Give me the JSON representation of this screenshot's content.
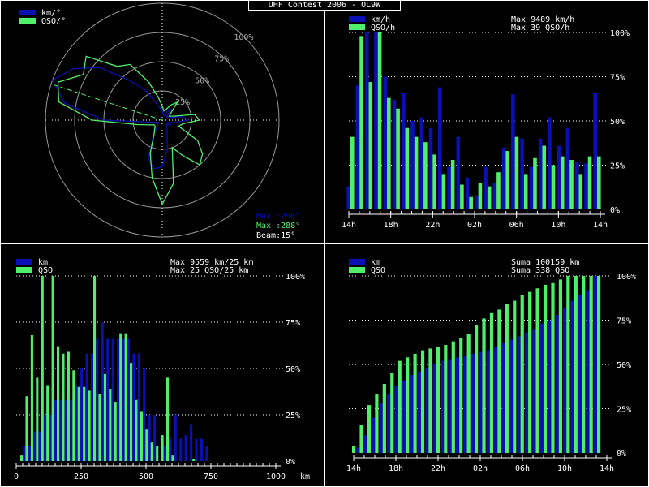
{
  "title": "UHF Contest 2006 - OL9W",
  "colors": {
    "blue": "#0a10b4",
    "green": "#4ef06a",
    "grid": "#ffffff",
    "ring": "#9a9a9a",
    "text": "#ffffff"
  },
  "chart_data": [
    {
      "id": "polar",
      "type": "polar",
      "legend": [
        "km/°",
        "QSO/°"
      ],
      "ring_labels": [
        "25%",
        "50%",
        "75%",
        "100%"
      ],
      "info": {
        "max_blue": "Max :290°",
        "max_green": "Max :288°",
        "beam": "Beam:15°"
      },
      "angles_deg": [
        0,
        10,
        20,
        30,
        40,
        50,
        60,
        70,
        80,
        90,
        100,
        110,
        120,
        130,
        140,
        150,
        160,
        170,
        180,
        190,
        200,
        210,
        220,
        230,
        240,
        250,
        260,
        270,
        280,
        290,
        300,
        310,
        320,
        330,
        340,
        350
      ],
      "series": [
        {
          "name": "km/°",
          "color": "blue",
          "values": [
            0.08,
            0.05,
            0.04,
            0.08,
            0.12,
            0.05,
            0.06,
            0.06,
            0.18,
            0.22,
            0.12,
            0.06,
            0.08,
            0.05,
            0.06,
            0.08,
            0.12,
            0.25,
            0.4,
            0.42,
            0.35,
            0.15,
            0.06,
            0.05,
            0.06,
            0.05,
            0.1,
            0.5,
            0.85,
            1.0,
            0.88,
            0.7,
            0.45,
            0.3,
            0.16,
            0.1
          ]
        },
        {
          "name": "QSO/°",
          "color": "green",
          "values": [
            0.12,
            0.08,
            0.1,
            0.15,
            0.2,
            0.1,
            0.07,
            0.1,
            0.28,
            0.32,
            0.18,
            0.15,
            0.35,
            0.45,
            0.5,
            0.35,
            0.25,
            0.55,
            0.72,
            0.5,
            0.3,
            0.14,
            0.1,
            0.08,
            0.08,
            0.12,
            0.22,
            0.6,
            0.9,
            0.95,
            0.78,
            0.85,
            0.6,
            0.55,
            0.35,
            0.2
          ]
        }
      ]
    },
    {
      "id": "hourly",
      "type": "bar",
      "legend": [
        "km/h",
        "QSO/h"
      ],
      "info": [
        "Max  9489 km/h",
        "Max   39 QSO/h"
      ],
      "x_ticks": [
        "14h",
        "18h",
        "22h",
        "02h",
        "06h",
        "10h",
        "14h"
      ],
      "y_ticks": [
        "0%",
        "25%",
        "50%",
        "75%",
        "100%"
      ],
      "ylim": [
        0,
        100
      ],
      "series": [
        {
          "name": "km/h",
          "color": "blue",
          "values": [
            13,
            70,
            100,
            100,
            75,
            62,
            66,
            50,
            52,
            46,
            69,
            24,
            41,
            18,
            8,
            24,
            15,
            35,
            65,
            40,
            24,
            40,
            52,
            36,
            46,
            27,
            26,
            66
          ]
        },
        {
          "name": "QSO/h",
          "color": "green",
          "values": [
            41,
            98,
            72,
            100,
            63,
            57,
            46,
            41,
            38,
            31,
            20,
            28,
            14,
            7,
            15,
            13,
            21,
            33,
            41,
            20,
            29,
            36,
            25,
            30,
            28,
            20,
            30,
            30
          ]
        }
      ]
    },
    {
      "id": "distance",
      "type": "bar",
      "legend": [
        "km",
        "QSO"
      ],
      "info": [
        "Max  9559 km/25 km",
        "Max   25 QSO/25 km"
      ],
      "x_ticks": [
        "0",
        "250",
        "500",
        "750",
        "1000"
      ],
      "x_unit": "km",
      "xlim": [
        0,
        1000
      ],
      "y_ticks": [
        "0%",
        "25%",
        "50%",
        "75%",
        "100%"
      ],
      "ylim": [
        0,
        100
      ],
      "bin_km": 25,
      "series": [
        {
          "name": "km",
          "color": "blue",
          "values": [
            0,
            8,
            8,
            16,
            16,
            25,
            25,
            33,
            33,
            33,
            33,
            41,
            50,
            58,
            58,
            66,
            75,
            66,
            66,
            66,
            66,
            66,
            58,
            58,
            50,
            25,
            25,
            0,
            8,
            12,
            25,
            12,
            14,
            20,
            12,
            12,
            8,
            0,
            0,
            0,
            0,
            0,
            0,
            0,
            0,
            0,
            0,
            0,
            0,
            0
          ]
        },
        {
          "name": "QSO",
          "color": "green",
          "values": [
            3,
            35,
            68,
            45,
            100,
            41,
            100,
            62,
            58,
            59,
            49,
            40,
            40,
            38,
            100,
            36,
            47,
            39,
            32,
            69,
            69,
            53,
            33,
            27,
            17,
            10,
            8,
            14,
            45,
            3,
            0,
            0,
            0,
            1,
            0,
            0,
            0,
            0,
            0,
            0,
            0,
            0,
            0,
            0,
            0,
            0,
            0,
            0,
            0,
            0
          ]
        }
      ]
    },
    {
      "id": "cumulative",
      "type": "bar",
      "legend": [
        "km",
        "QSO"
      ],
      "info": [
        "Suma 100159 km",
        "Suma   338 QSO"
      ],
      "x_ticks": [
        "14h",
        "18h",
        "22h",
        "02h",
        "06h",
        "10h",
        "14h"
      ],
      "y_ticks": [
        "0%",
        "25%",
        "50%",
        "75%",
        "100%"
      ],
      "ylim": [
        0,
        100
      ],
      "series": [
        {
          "name": "km",
          "color": "blue",
          "values": [
            0,
            3,
            10,
            20,
            28,
            33,
            38,
            41,
            44,
            46,
            48,
            50,
            52,
            53,
            54,
            55,
            56,
            57,
            58,
            60,
            62,
            64,
            66,
            68,
            70,
            73,
            75,
            78,
            82,
            86,
            89,
            92,
            100
          ]
        },
        {
          "name": "QSO",
          "color": "green",
          "values": [
            4,
            16,
            27,
            33,
            39,
            45,
            52,
            54,
            56,
            58,
            59,
            60,
            61,
            63,
            65,
            67,
            72,
            76,
            79,
            81,
            84,
            86,
            89,
            91,
            93,
            95,
            96,
            98,
            100,
            100,
            100,
            100,
            100
          ]
        }
      ]
    }
  ]
}
